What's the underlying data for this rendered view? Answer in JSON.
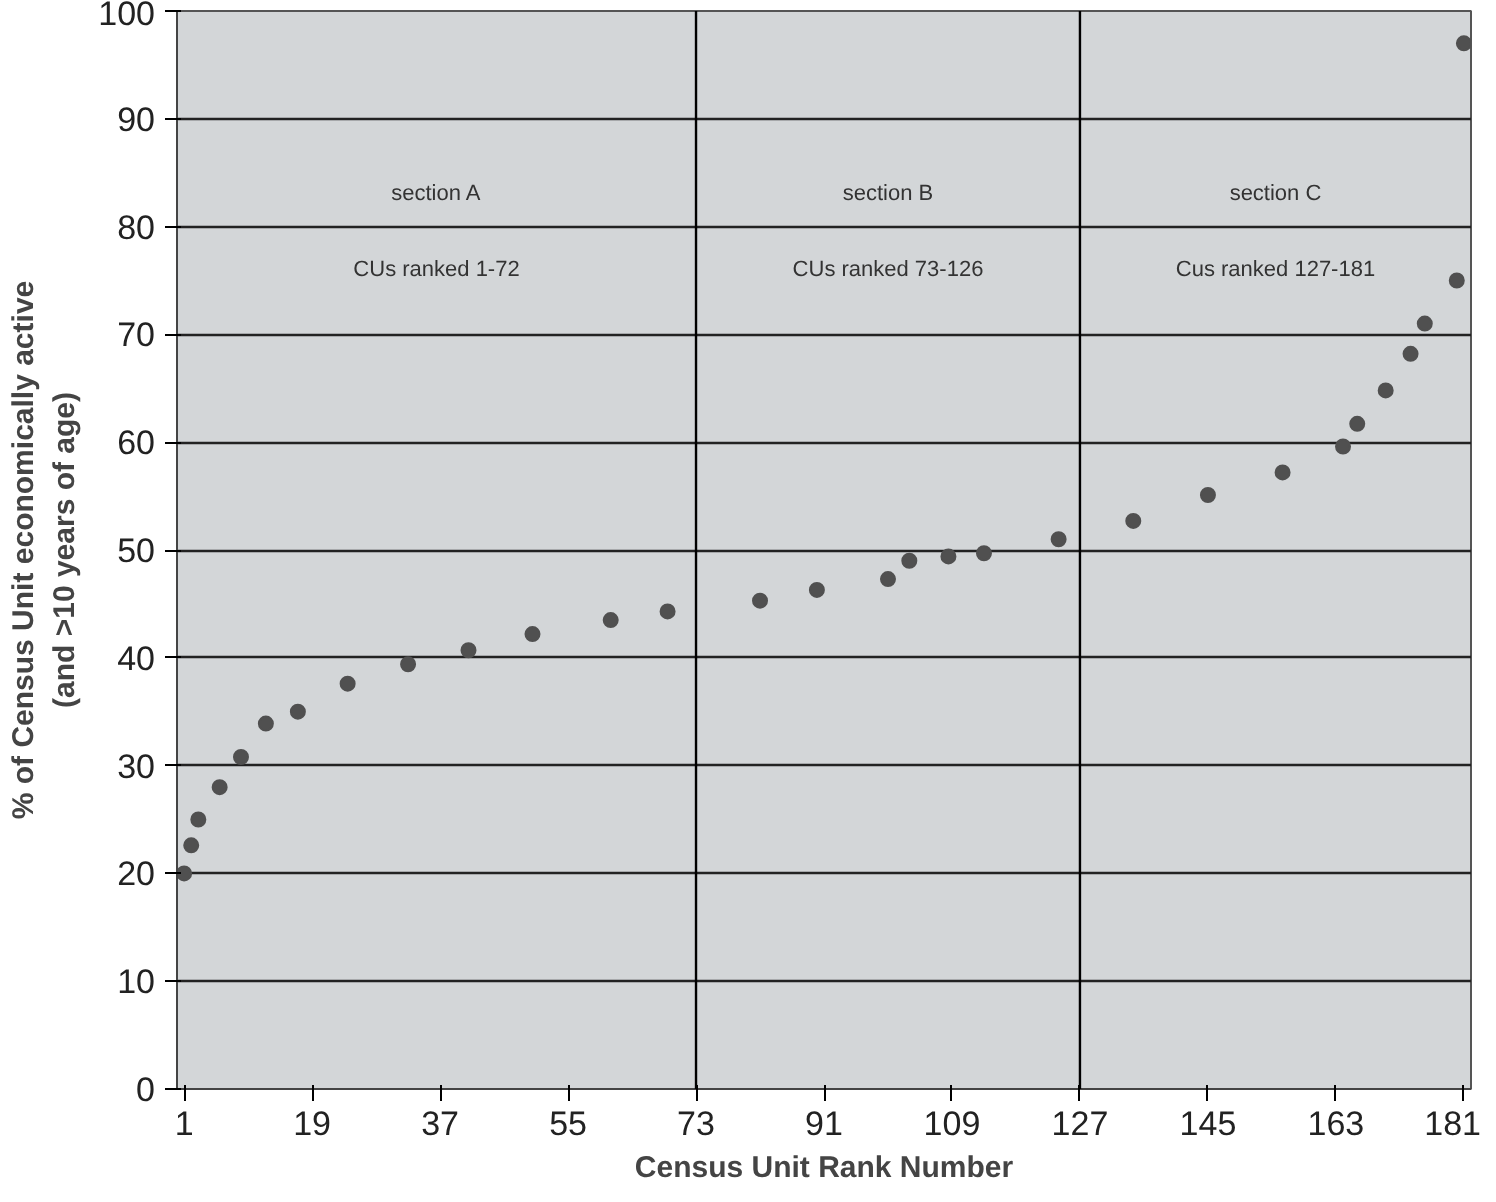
{
  "chart_data": {
    "type": "scatter",
    "xlabel": "Census Unit Rank Number",
    "ylabel": "% of Census Unit economically active\n(and >10 years of age)",
    "series": [
      {
        "color": "#505050",
        "x": [
          1,
          2,
          3,
          6,
          9,
          12.5,
          17,
          24,
          32.5,
          41,
          50,
          61,
          69,
          82,
          90,
          100,
          103,
          108.5,
          113.5,
          124,
          134.5,
          145,
          155.5,
          164,
          166,
          170,
          173.5,
          175.5,
          180,
          181
        ],
        "values": [
          20,
          22.6,
          25,
          28,
          30.8,
          33.9,
          35,
          37.6,
          39.4,
          40.7,
          42.2,
          43.5,
          44.3,
          45.3,
          46.3,
          47.3,
          49,
          49.4,
          49.7,
          51,
          52.7,
          55.1,
          57.2,
          59.6,
          61.7,
          64.8,
          68.2,
          71,
          75,
          97
        ]
      }
    ],
    "xlim": [
      0,
      182
    ],
    "xticks": [
      1,
      19,
      37,
      55,
      73,
      91,
      109,
      127,
      145,
      163,
      181
    ],
    "ylim": [
      0,
      100
    ],
    "yticks": [
      0,
      10,
      20,
      30,
      40,
      50,
      60,
      70,
      80,
      90,
      100
    ],
    "grid": "y",
    "marker": "circle",
    "ref_lines": [
      {
        "axis": "x",
        "value": 73,
        "color": "#000000"
      },
      {
        "axis": "x",
        "value": 127,
        "color": "#000000"
      }
    ],
    "annotations": [
      "section A",
      "CUs ranked 1-72",
      "section B",
      "CUs ranked 73-126",
      "section C",
      "Cus ranked 127-181"
    ]
  }
}
